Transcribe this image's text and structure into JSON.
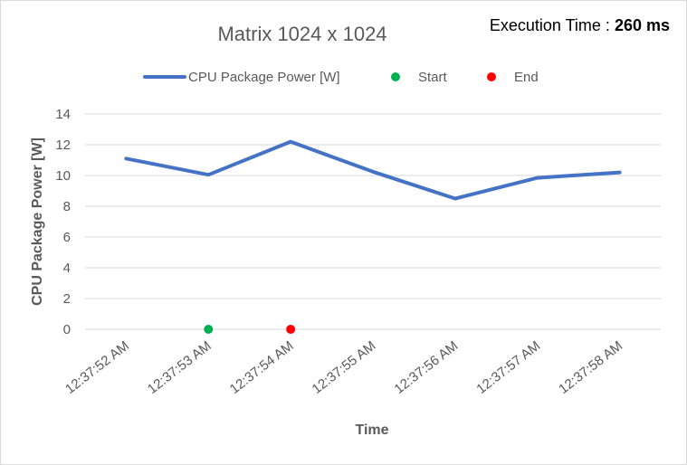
{
  "chart_data": {
    "type": "line",
    "title": "Matrix 1024 x 1024",
    "annotation": {
      "label": "Execution Time",
      "separator": " : ",
      "value": "260 ms"
    },
    "xlabel": "Time",
    "ylabel": "CPU Package Power [W]",
    "ylim": [
      0,
      14
    ],
    "y_ticks": [
      0,
      2,
      4,
      6,
      8,
      10,
      12,
      14
    ],
    "grid": true,
    "legend_position": "top",
    "categories": [
      "12:37:52 AM",
      "12:37:53 AM",
      "12:37:54 AM",
      "12:37:55 AM",
      "12:37:56 AM",
      "12:37:57 AM",
      "12:37:58 AM"
    ],
    "series": [
      {
        "name": "CPU Package Power [W]",
        "type": "line",
        "color": "#4472c4",
        "values": [
          11.1,
          10.05,
          12.2,
          10.25,
          8.5,
          9.85,
          10.2
        ]
      },
      {
        "name": "Start",
        "type": "marker",
        "color": "#00b050",
        "points": [
          {
            "x": "12:37:53 AM",
            "y": 0
          }
        ]
      },
      {
        "name": "End",
        "type": "marker",
        "color": "#ff0000",
        "points": [
          {
            "x": "12:37:54 AM",
            "y": 0
          }
        ]
      }
    ]
  }
}
